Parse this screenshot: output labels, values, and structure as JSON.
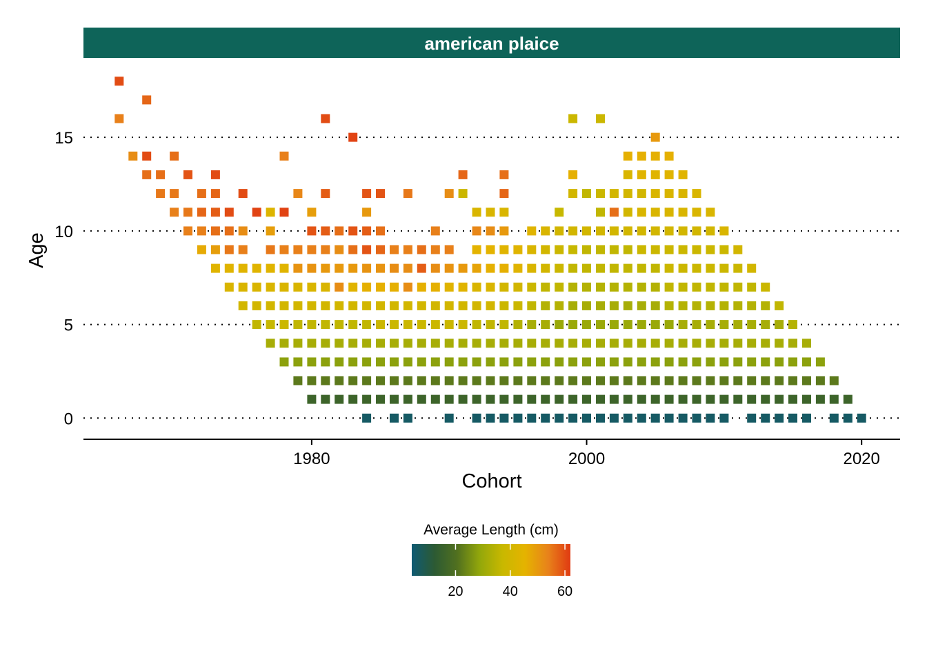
{
  "chart_data": {
    "type": "heatmap",
    "panel_title": "american plaice",
    "xlabel": "Cohort",
    "ylabel": "Age",
    "xlim": [
      1963.4,
      2022.8
    ],
    "ylim": [
      -0.8,
      18.8
    ],
    "x_ticks": [
      1980,
      2000,
      2020
    ],
    "y_ticks": [
      0,
      5,
      10,
      15
    ],
    "grid": "dotted horizontal lines at y ticks",
    "legend": {
      "title": "Average Length (cm)",
      "position": "bottom",
      "range": [
        4,
        62
      ],
      "ticks": [
        20,
        40,
        60
      ],
      "colors": [
        "#0f5a73",
        "#2c5a33",
        "#51701f",
        "#93a70b",
        "#c8b800",
        "#e5b300",
        "#e8831a",
        "#e03a12"
      ]
    },
    "strip_color": "#0e6459",
    "points": [
      [
        1966,
        18,
        60
      ],
      [
        1968,
        17,
        57
      ],
      [
        1966,
        16,
        54
      ],
      [
        1981,
        16,
        60
      ],
      [
        1983,
        15,
        61
      ],
      [
        2005,
        15,
        50
      ],
      [
        1999,
        16,
        38
      ],
      [
        2001,
        16,
        38
      ],
      [
        1967,
        14,
        52
      ],
      [
        1968,
        14,
        60
      ],
      [
        1970,
        14,
        56
      ],
      [
        1978,
        14,
        54
      ],
      [
        2003,
        14,
        46
      ],
      [
        2004,
        14,
        46
      ],
      [
        2005,
        14,
        46
      ],
      [
        2006,
        14,
        46
      ],
      [
        1968,
        13,
        56
      ],
      [
        1969,
        13,
        56
      ],
      [
        1971,
        13,
        59
      ],
      [
        1973,
        13,
        60
      ],
      [
        1991,
        13,
        57
      ],
      [
        1994,
        13,
        56
      ],
      [
        1999,
        13,
        46
      ],
      [
        2003,
        13,
        42
      ],
      [
        2004,
        13,
        44
      ],
      [
        2005,
        13,
        44
      ],
      [
        2006,
        13,
        44
      ],
      [
        2007,
        13,
        44
      ],
      [
        1969,
        12,
        55
      ],
      [
        1970,
        12,
        55
      ],
      [
        1972,
        12,
        56
      ],
      [
        1973,
        12,
        57
      ],
      [
        1975,
        12,
        60
      ],
      [
        1979,
        12,
        53
      ],
      [
        1981,
        12,
        58
      ],
      [
        1984,
        12,
        59
      ],
      [
        1985,
        12,
        59
      ],
      [
        1987,
        12,
        55
      ],
      [
        1990,
        12,
        52
      ],
      [
        1991,
        12,
        38
      ],
      [
        1994,
        12,
        57
      ],
      [
        1999,
        12,
        40
      ],
      [
        2000,
        12,
        36
      ],
      [
        2001,
        12,
        38
      ],
      [
        2002,
        12,
        40
      ],
      [
        2003,
        12,
        40
      ],
      [
        2004,
        12,
        40
      ],
      [
        2005,
        12,
        42
      ],
      [
        2006,
        12,
        42
      ],
      [
        2007,
        12,
        42
      ],
      [
        2008,
        12,
        42
      ],
      [
        1970,
        11,
        54
      ],
      [
        1971,
        11,
        55
      ],
      [
        1972,
        11,
        57
      ],
      [
        1973,
        11,
        58
      ],
      [
        1974,
        11,
        60
      ],
      [
        1976,
        11,
        61
      ],
      [
        1977,
        11,
        43
      ],
      [
        1978,
        11,
        61
      ],
      [
        1980,
        11,
        49
      ],
      [
        1984,
        11,
        50
      ],
      [
        1992,
        11,
        42
      ],
      [
        1993,
        11,
        42
      ],
      [
        1994,
        11,
        42
      ],
      [
        1998,
        11,
        37
      ],
      [
        2001,
        11,
        36
      ],
      [
        2002,
        11,
        56
      ],
      [
        2003,
        11,
        40
      ],
      [
        2004,
        11,
        42
      ],
      [
        2005,
        11,
        42
      ],
      [
        2006,
        11,
        42
      ],
      [
        2007,
        11,
        42
      ],
      [
        2008,
        11,
        42
      ],
      [
        2009,
        11,
        42
      ],
      [
        1971,
        10,
        54
      ],
      [
        1972,
        10,
        54
      ],
      [
        1973,
        10,
        56
      ],
      [
        1974,
        10,
        56
      ],
      [
        1975,
        10,
        52
      ],
      [
        1977,
        10,
        49
      ],
      [
        1980,
        10,
        59
      ],
      [
        1981,
        10,
        58
      ],
      [
        1982,
        10,
        56
      ],
      [
        1983,
        10,
        59
      ],
      [
        1984,
        10,
        58
      ],
      [
        1985,
        10,
        56
      ],
      [
        1989,
        10,
        54
      ],
      [
        1992,
        10,
        53
      ],
      [
        1993,
        10,
        52
      ],
      [
        1994,
        10,
        50
      ],
      [
        1996,
        10,
        44
      ],
      [
        1997,
        10,
        42
      ],
      [
        1998,
        10,
        40
      ],
      [
        1999,
        10,
        40
      ],
      [
        2000,
        10,
        40
      ],
      [
        2001,
        10,
        40
      ],
      [
        2002,
        10,
        40
      ],
      [
        2003,
        10,
        40
      ],
      [
        2004,
        10,
        40
      ],
      [
        2005,
        10,
        40
      ],
      [
        2006,
        10,
        40
      ],
      [
        2007,
        10,
        40
      ],
      [
        2008,
        10,
        40
      ],
      [
        2009,
        10,
        40
      ],
      [
        2010,
        10,
        42
      ],
      [
        1972,
        9,
        47
      ],
      [
        1973,
        9,
        49
      ],
      [
        1974,
        9,
        55
      ],
      [
        1975,
        9,
        54
      ],
      [
        1977,
        9,
        55
      ],
      [
        1978,
        9,
        54
      ],
      [
        1979,
        9,
        54
      ],
      [
        1980,
        9,
        54
      ],
      [
        1981,
        9,
        54
      ],
      [
        1982,
        9,
        52
      ],
      [
        1983,
        9,
        56
      ],
      [
        1984,
        9,
        59
      ],
      [
        1985,
        9,
        57
      ],
      [
        1986,
        9,
        54
      ],
      [
        1987,
        9,
        54
      ],
      [
        1988,
        9,
        56
      ],
      [
        1989,
        9,
        54
      ],
      [
        1990,
        9,
        54
      ],
      [
        1992,
        9,
        45
      ],
      [
        1993,
        9,
        45
      ],
      [
        1994,
        9,
        44
      ],
      [
        1995,
        9,
        44
      ],
      [
        1996,
        9,
        42
      ],
      [
        1997,
        9,
        40
      ],
      [
        1998,
        9,
        38
      ],
      [
        1999,
        9,
        37
      ],
      [
        2000,
        9,
        36
      ],
      [
        2001,
        9,
        36
      ],
      [
        2002,
        9,
        36
      ],
      [
        2003,
        9,
        36
      ],
      [
        2004,
        9,
        38
      ],
      [
        2005,
        9,
        38
      ],
      [
        2006,
        9,
        38
      ],
      [
        2007,
        9,
        38
      ],
      [
        2008,
        9,
        38
      ],
      [
        2009,
        9,
        38
      ],
      [
        2010,
        9,
        38
      ],
      [
        2011,
        9,
        40
      ]
    ],
    "rows_full": [
      {
        "age": 8,
        "from": 1973,
        "to": 2012,
        "base": 44,
        "hot": {
          "1979": 51,
          "1980": 51,
          "1981": 50,
          "1982": 50,
          "1983": 50,
          "1984": 51,
          "1985": 51,
          "1986": 52,
          "1987": 52,
          "1988": 58,
          "1989": 52,
          "1990": 51,
          "1991": 50,
          "1992": 48,
          "1993": 46,
          "1994": 46,
          "1995": 44,
          "1996": 42,
          "1997": 40,
          "1998": 38,
          "1999": 36,
          "2000": 36,
          "2001": 36,
          "2002": 36,
          "2003": 36,
          "2004": 36,
          "2005": 36,
          "2006": 38,
          "2007": 38,
          "2008": 38,
          "2009": 38,
          "2010": 38,
          "2011": 38,
          "2012": 40
        }
      },
      {
        "age": 7,
        "from": 1974,
        "to": 2013,
        "base": 42,
        "hot": {
          "1982": 52,
          "1983": 44,
          "1984": 46,
          "1985": 46,
          "1986": 46,
          "1987": 52,
          "1988": 46,
          "1989": 46,
          "1990": 44,
          "1991": 44,
          "1992": 42,
          "1993": 42,
          "1994": 40,
          "1995": 40,
          "1996": 38,
          "1997": 36,
          "1998": 36,
          "1999": 34,
          "2000": 34,
          "2001": 34,
          "2002": 34,
          "2003": 34,
          "2004": 34,
          "2005": 34,
          "2006": 36,
          "2007": 36,
          "2008": 36,
          "2009": 36,
          "2010": 36,
          "2011": 36,
          "2012": 36,
          "2013": 38
        }
      },
      {
        "age": 6,
        "from": 1975,
        "to": 2014,
        "base": 40,
        "hot": {
          "1991": 40,
          "1992": 40,
          "1993": 40,
          "1994": 38,
          "1995": 38,
          "1996": 36,
          "1997": 34,
          "1998": 34,
          "1999": 32,
          "2000": 32,
          "2001": 32,
          "2002": 32,
          "2003": 32,
          "2004": 32,
          "2005": 32,
          "2006": 34,
          "2007": 34,
          "2008": 34,
          "2009": 34,
          "2010": 34,
          "2011": 34,
          "2012": 34,
          "2013": 34,
          "2014": 36
        }
      },
      {
        "age": 5,
        "from": 1976,
        "to": 2015,
        "base": 36,
        "hot": {
          "1976": 36,
          "1977": 37,
          "1978": 38,
          "1985": 38,
          "1986": 38,
          "1987": 38,
          "1988": 38,
          "1989": 38,
          "1990": 38,
          "1991": 38,
          "1992": 36,
          "1993": 36,
          "1994": 36,
          "1995": 34,
          "1996": 32,
          "1997": 32,
          "1998": 30,
          "1999": 30,
          "2000": 30,
          "2001": 30,
          "2002": 30,
          "2003": 30,
          "2004": 30,
          "2005": 30,
          "2006": 30,
          "2007": 32,
          "2008": 32,
          "2009": 32,
          "2010": 32,
          "2011": 32,
          "2012": 32,
          "2013": 32,
          "2014": 32,
          "2015": 34
        }
      },
      {
        "age": 4,
        "from": 1977,
        "to": 2016,
        "base": 32,
        "hot": {}
      },
      {
        "age": 3,
        "from": 1978,
        "to": 2017,
        "base": 28,
        "hot": {}
      },
      {
        "age": 2,
        "from": 1979,
        "to": 2018,
        "base": 22,
        "hot": {}
      },
      {
        "age": 1,
        "from": 1980,
        "to": 2019,
        "base": 16,
        "hot": {}
      }
    ],
    "age0_cohorts": [
      1984,
      1986,
      1987,
      1990,
      1992,
      1993,
      1994,
      1995,
      1996,
      1997,
      1998,
      1999,
      2000,
      2001,
      2002,
      2003,
      2004,
      2005,
      2006,
      2007,
      2008,
      2009,
      2010,
      2012,
      2013,
      2014,
      2015,
      2016,
      2018,
      2019,
      2020
    ],
    "age0_value": 6
  }
}
